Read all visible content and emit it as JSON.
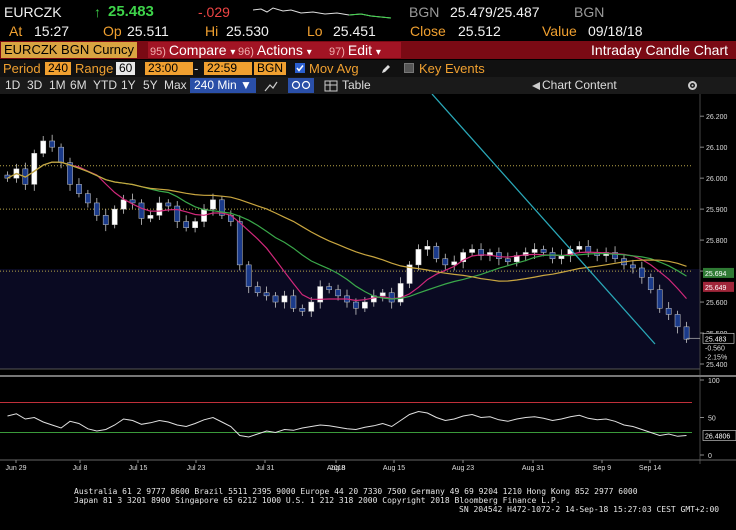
{
  "quote": {
    "ticker": "EURCZK",
    "last_arrow": "↑",
    "last": "25.483",
    "change": "-.029",
    "bgn_label": "BGN",
    "bid_ask": "25.479/25.487",
    "bgn_label2": "BGN",
    "at_label": "At",
    "at_time": "15:27",
    "op_label": "Op",
    "op": "25.511",
    "hi_label": "Hi",
    "hi": "25.530",
    "lo_label": "Lo",
    "lo": "25.451",
    "close_label": "Close",
    "close": "25.512",
    "value_label": "Value",
    "value_date": "09/18/18"
  },
  "titlebar": {
    "security": "EURCZK BGN Curncy",
    "menus": [
      {
        "num": "95)",
        "label": "Compare",
        "arrow": "▾"
      },
      {
        "num": "96)",
        "label": "Actions",
        "arrow": "▾"
      },
      {
        "num": "97)",
        "label": "Edit",
        "arrow": "▾"
      }
    ],
    "chart_name": "Intraday Candle Chart"
  },
  "params": {
    "period_label": "Period",
    "period_value": "240",
    "range_label": "Range",
    "range_value": "60",
    "start_time": "23:00",
    "end_time": "22:59",
    "source": "BGN",
    "mov_avg_label": "Mov Avg",
    "key_events_label": "Key Events"
  },
  "toolbar": {
    "ranges": [
      "1D",
      "3D",
      "1M",
      "6M",
      "YTD",
      "1Y",
      "5Y",
      "Max"
    ],
    "interval": "240 Min ▼",
    "table_label": "Table",
    "chart_content_label": "Chart Content"
  },
  "chart_data": {
    "type": "candlestick",
    "price_axis": {
      "ticks": [
        "26.200",
        "26.100",
        "26.000",
        "25.900",
        "25.800",
        "25.700",
        "25.600",
        "25.500",
        "25.400"
      ],
      "ylim": [
        25.4,
        26.22
      ]
    },
    "price_labels": [
      {
        "value": "25.694",
        "kind": "green"
      },
      {
        "value": "25.649",
        "kind": "red"
      },
      {
        "value": "25.483",
        "kind": "last"
      },
      {
        "value": "-0.560",
        "kind": "change"
      },
      {
        "value": "-2.15%",
        "kind": "pct"
      }
    ],
    "x_ticks": [
      "Jun 29",
      "Jul 8",
      "Jul 15",
      "Jul 23",
      "Jul 31",
      "Aug 8",
      "Aug 15",
      "Aug 23",
      "Aug 31",
      "Sep 9",
      "Sep 14"
    ],
    "year_label": "2018",
    "reference_lines": [
      26.04,
      25.9,
      25.7
    ],
    "close_series": [
      26.0,
      26.03,
      25.98,
      26.08,
      26.12,
      26.1,
      26.05,
      25.98,
      25.95,
      25.92,
      25.88,
      25.85,
      25.9,
      25.93,
      25.92,
      25.87,
      25.88,
      25.92,
      25.91,
      25.86,
      25.84,
      25.86,
      25.9,
      25.93,
      25.88,
      25.86,
      25.72,
      25.65,
      25.63,
      25.62,
      25.6,
      25.62,
      25.58,
      25.57,
      25.6,
      25.65,
      25.64,
      25.62,
      25.6,
      25.58,
      25.6,
      25.62,
      25.63,
      25.6,
      25.66,
      25.72,
      25.77,
      25.78,
      25.74,
      25.72,
      25.73,
      25.76,
      25.77,
      25.75,
      25.76,
      25.74,
      25.73,
      25.75,
      25.76,
      25.77,
      25.76,
      25.74,
      25.75,
      25.77,
      25.78,
      25.76,
      25.75,
      25.76,
      25.74,
      25.72,
      25.71,
      25.68,
      25.64,
      25.58,
      25.56,
      25.52,
      25.48
    ],
    "indicator": {
      "axis_ticks": [
        "100",
        "50",
        "0"
      ],
      "ylim": [
        0,
        100
      ],
      "overbought": 70,
      "oversold": 30,
      "last_label": "26.4806",
      "values": [
        52,
        55,
        48,
        50,
        44,
        40,
        36,
        45,
        42,
        35,
        32,
        34,
        40,
        48,
        46,
        41,
        43,
        46,
        44,
        40,
        38,
        42,
        47,
        50,
        44,
        38,
        26,
        24,
        28,
        32,
        30,
        34,
        33,
        36,
        38,
        40,
        39,
        37,
        35,
        34,
        37,
        39,
        42,
        38,
        46,
        54,
        58,
        56,
        50,
        46,
        48,
        52,
        54,
        50,
        51,
        47,
        45,
        48,
        50,
        51,
        49,
        46,
        48,
        51,
        53,
        49,
        47,
        48,
        45,
        40,
        38,
        34,
        30,
        26,
        28,
        25,
        26
      ]
    }
  },
  "footer": {
    "line1": "Australia 61 2 9777 8600 Brazil 5511 2395 9000 Europe 44 20 7330 7500 Germany 49 69 9204 1210 Hong Kong 852 2977 6000",
    "line2": "Japan 81 3 3201 8900          Singapore 65 6212 1000       U.S. 1 212 318 2000             Copyright 2018 Bloomberg Finance L.P.",
    "line3": "SN 204542 H472-1072-2 14-Sep-18 15:27:03 CEST GMT+2:00"
  }
}
